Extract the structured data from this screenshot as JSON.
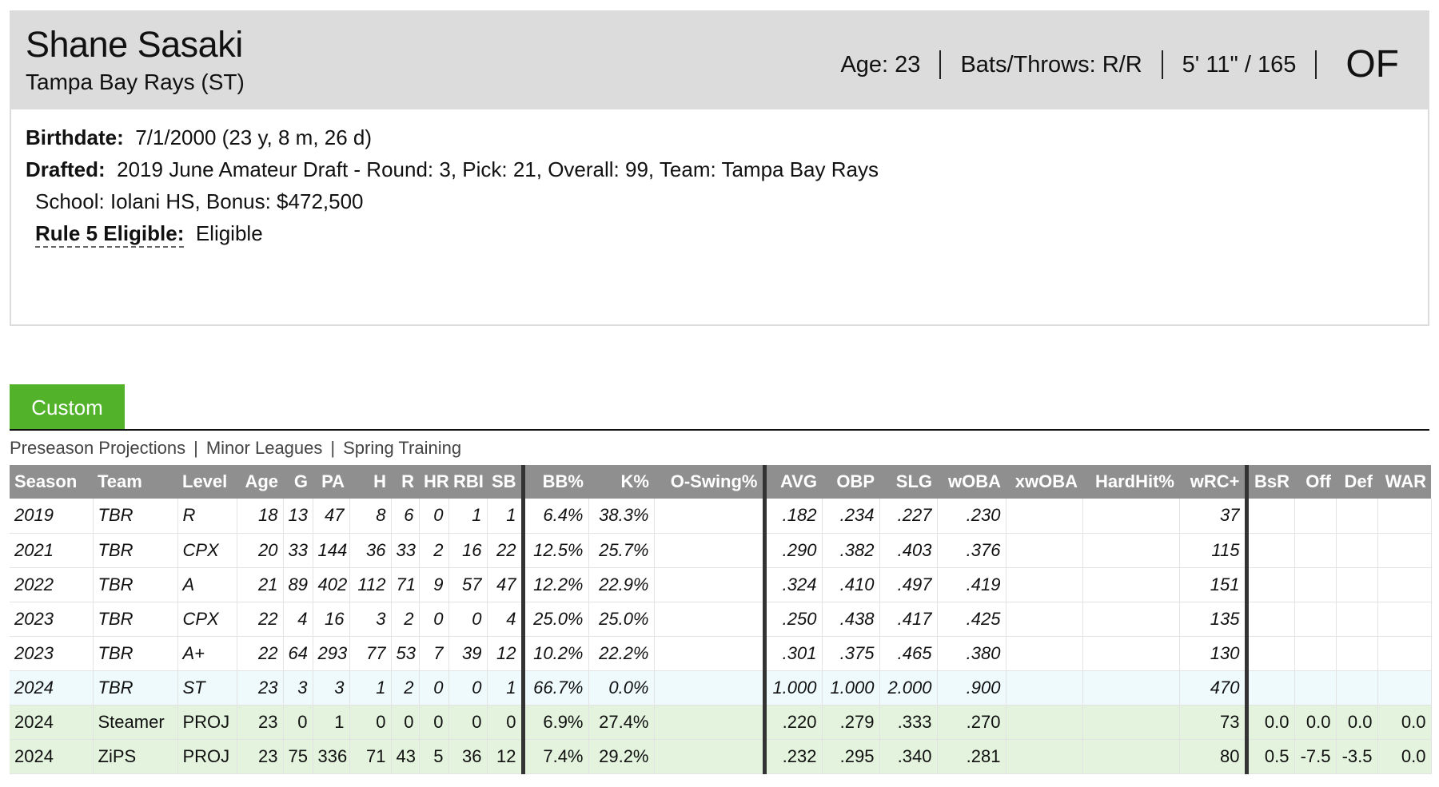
{
  "player": {
    "name": "Shane Sasaki",
    "team": "Tampa Bay Rays (ST)",
    "age": "Age: 23",
    "bats_throws": "Bats/Throws: R/R",
    "height_weight": "5' 11\" / 165",
    "position": "OF"
  },
  "info": {
    "birthdate_label": "Birthdate:",
    "birthdate_value": "7/1/2000 (23 y, 8 m, 26 d)",
    "drafted_label": "Drafted:",
    "drafted_value": "2019 June Amateur Draft - Round: 3, Pick: 21, Overall: 99, Team: Tampa Bay Rays",
    "school_line": "School: Iolani HS, Bonus: $472,500",
    "rule5_label": "Rule 5 Eligible:",
    "rule5_value": "Eligible"
  },
  "tabs": {
    "custom_label": "Custom"
  },
  "subnav": {
    "items": [
      "Preseason Projections",
      "Minor Leagues",
      "Spring Training"
    ],
    "separator": "|"
  },
  "table": {
    "headers": [
      "Season",
      "Team",
      "Level",
      "Age",
      "G",
      "PA",
      "H",
      "R",
      "HR",
      "RBI",
      "SB",
      "BB%",
      "K%",
      "O-Swing%",
      "AVG",
      "OBP",
      "SLG",
      "wOBA",
      "xwOBA",
      "HardHit%",
      "wRC+",
      "BsR",
      "Off",
      "Def",
      "WAR"
    ],
    "rows": [
      {
        "type": "hist",
        "cells": [
          "2019",
          "TBR",
          "R",
          "18",
          "13",
          "47",
          "8",
          "6",
          "0",
          "1",
          "1",
          "6.4%",
          "38.3%",
          "",
          ".182",
          ".234",
          ".227",
          ".230",
          "",
          "",
          "37",
          "",
          "",
          "",
          ""
        ]
      },
      {
        "type": "hist",
        "cells": [
          "2021",
          "TBR",
          "CPX",
          "20",
          "33",
          "144",
          "36",
          "33",
          "2",
          "16",
          "22",
          "12.5%",
          "25.7%",
          "",
          ".290",
          ".382",
          ".403",
          ".376",
          "",
          "",
          "115",
          "",
          "",
          "",
          ""
        ]
      },
      {
        "type": "hist",
        "cells": [
          "2022",
          "TBR",
          "A",
          "21",
          "89",
          "402",
          "112",
          "71",
          "9",
          "57",
          "47",
          "12.2%",
          "22.9%",
          "",
          ".324",
          ".410",
          ".497",
          ".419",
          "",
          "",
          "151",
          "",
          "",
          "",
          ""
        ]
      },
      {
        "type": "hist",
        "cells": [
          "2023",
          "TBR",
          "CPX",
          "22",
          "4",
          "16",
          "3",
          "2",
          "0",
          "0",
          "4",
          "25.0%",
          "25.0%",
          "",
          ".250",
          ".438",
          ".417",
          ".425",
          "",
          "",
          "135",
          "",
          "",
          "",
          ""
        ]
      },
      {
        "type": "hist",
        "cells": [
          "2023",
          "TBR",
          "A+",
          "22",
          "64",
          "293",
          "77",
          "53",
          "7",
          "39",
          "12",
          "10.2%",
          "22.2%",
          "",
          ".301",
          ".375",
          ".465",
          ".380",
          "",
          "",
          "130",
          "",
          "",
          "",
          ""
        ]
      },
      {
        "type": "curr",
        "cells": [
          "2024",
          "TBR",
          "ST",
          "23",
          "3",
          "3",
          "1",
          "2",
          "0",
          "0",
          "1",
          "66.7%",
          "0.0%",
          "",
          "1.000",
          "1.000",
          "2.000",
          ".900",
          "",
          "",
          "470",
          "",
          "",
          "",
          ""
        ]
      },
      {
        "type": "proj",
        "cells": [
          "2024",
          "Steamer",
          "PROJ",
          "23",
          "0",
          "1",
          "0",
          "0",
          "0",
          "0",
          "0",
          "6.9%",
          "27.4%",
          "",
          ".220",
          ".279",
          ".333",
          ".270",
          "",
          "",
          "73",
          "0.0",
          "0.0",
          "0.0",
          "0.0"
        ]
      },
      {
        "type": "proj",
        "cells": [
          "2024",
          "ZiPS",
          "PROJ",
          "23",
          "75",
          "336",
          "71",
          "43",
          "5",
          "36",
          "12",
          "7.4%",
          "29.2%",
          "",
          ".232",
          ".295",
          ".340",
          ".281",
          "",
          "",
          "80",
          "0.5",
          "-7.5",
          "-3.5",
          "0.0"
        ]
      }
    ]
  }
}
